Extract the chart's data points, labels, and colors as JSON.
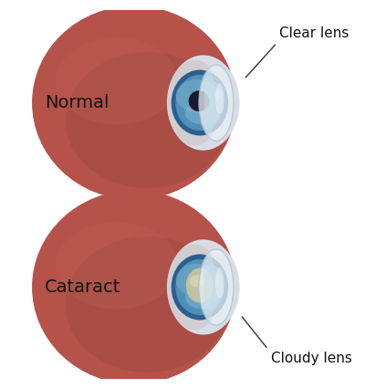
{
  "bg_color": "#ffffff",
  "eyeball_color": "#b5524a",
  "eyeball_dark": "#8a3f3a",
  "eyeball_light": "#c96b62",
  "sclera_color": "#dce0e6",
  "sclera_edge_color": "#b8bcc5",
  "iris_main": "#5090b8",
  "iris_light": "#7ab0cc",
  "iris_dark": "#2a6090",
  "pupil_color": "#1a1a2e",
  "cornea_color": "#d8e8f0",
  "cornea_edge": "#a8c0d0",
  "normal_label": "Normal",
  "cataract_label": "Cataract",
  "clear_lens_label": "Clear lens",
  "cloudy_lens_label": "Cloudy lens",
  "label_fontsize": 12,
  "annot_fontsize": 11
}
